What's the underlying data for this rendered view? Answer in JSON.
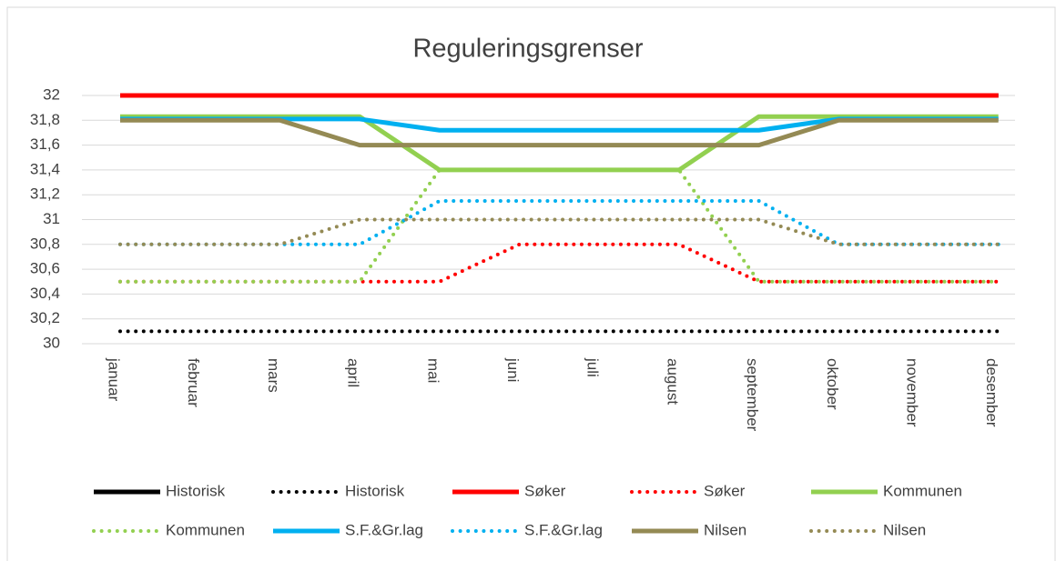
{
  "chart_data": {
    "type": "line",
    "title": "Reguleringsgrenser",
    "categories": [
      "januar",
      "februar",
      "mars",
      "april",
      "mai",
      "juni",
      "juli",
      "august",
      "september",
      "oktober",
      "november",
      "desember"
    ],
    "ylim": [
      30,
      32
    ],
    "yticks": [
      30,
      {
        "value": 30.2,
        "label": "30,2"
      },
      {
        "value": 30.4,
        "label": "30,4"
      },
      {
        "value": 30.6,
        "label": "30,6"
      },
      {
        "value": 30.8,
        "label": "30,8"
      },
      31,
      {
        "value": 31.2,
        "label": "31,2"
      },
      {
        "value": 31.4,
        "label": "31,4"
      },
      {
        "value": 31.6,
        "label": "31,6"
      },
      {
        "value": 31.8,
        "label": "31,8"
      },
      32
    ],
    "grid": true,
    "legend": "bottom",
    "series": [
      {
        "name": "Historisk",
        "color": "#000000",
        "style": "solid",
        "values": [
          32,
          32,
          32,
          32,
          32,
          32,
          32,
          32,
          32,
          32,
          32,
          32
        ]
      },
      {
        "name": "Historisk",
        "color": "#000000",
        "style": "dotted",
        "values": [
          30.1,
          30.1,
          30.1,
          30.1,
          30.1,
          30.1,
          30.1,
          30.1,
          30.1,
          30.1,
          30.1,
          30.1
        ]
      },
      {
        "name": "Søker",
        "color": "#ff0000",
        "style": "solid",
        "values": [
          32,
          32,
          32,
          32,
          32,
          32,
          32,
          32,
          32,
          32,
          32,
          32
        ]
      },
      {
        "name": "Søker",
        "color": "#ff0000",
        "style": "dotted",
        "values": [
          30.5,
          30.5,
          30.5,
          30.5,
          30.5,
          30.8,
          30.8,
          30.8,
          30.5,
          30.5,
          30.5,
          30.5
        ]
      },
      {
        "name": "Kommunen",
        "color": "#92d050",
        "style": "solid",
        "values": [
          31.83,
          31.83,
          31.83,
          31.83,
          31.4,
          31.4,
          31.4,
          31.4,
          31.83,
          31.83,
          31.83,
          31.83
        ]
      },
      {
        "name": "Kommunen",
        "color": "#92d050",
        "style": "dotted",
        "values": [
          30.5,
          30.5,
          30.5,
          30.5,
          31.4,
          31.4,
          31.4,
          31.4,
          30.5,
          30.5,
          30.5,
          30.5
        ]
      },
      {
        "name": "S.F.&Gr.lag",
        "color": "#00b0f0",
        "style": "solid",
        "values": [
          31.81,
          31.81,
          31.81,
          31.81,
          31.72,
          31.72,
          31.72,
          31.72,
          31.72,
          31.81,
          31.81,
          31.81
        ]
      },
      {
        "name": "S.F.&Gr.lag",
        "color": "#00b0f0",
        "style": "dotted",
        "values": [
          30.8,
          30.8,
          30.8,
          30.8,
          31.15,
          31.15,
          31.15,
          31.15,
          31.15,
          30.8,
          30.8,
          30.8
        ]
      },
      {
        "name": "Nilsen",
        "color": "#948a54",
        "style": "solid",
        "values": [
          31.8,
          31.8,
          31.8,
          31.6,
          31.6,
          31.6,
          31.6,
          31.6,
          31.6,
          31.8,
          31.8,
          31.8
        ]
      },
      {
        "name": "Nilsen",
        "color": "#948a54",
        "style": "dotted",
        "values": [
          30.8,
          30.8,
          30.8,
          31,
          31,
          31,
          31,
          31,
          31,
          30.8,
          30.8,
          30.8
        ]
      }
    ]
  }
}
